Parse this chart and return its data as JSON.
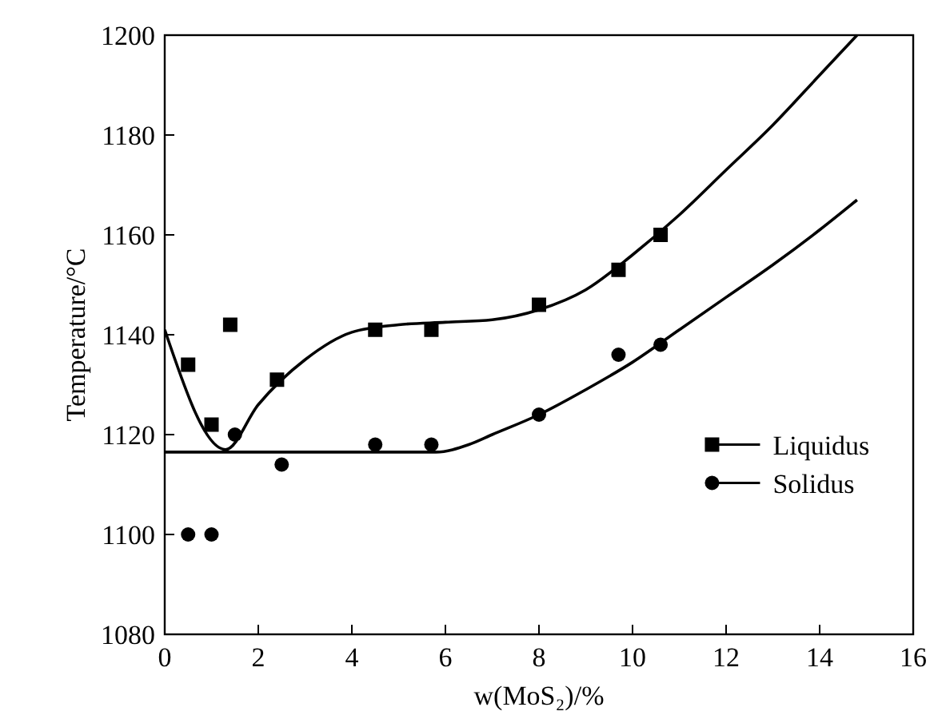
{
  "chart_data": {
    "type": "scatter",
    "xlabel": "w(MoS₂)/%",
    "ylabel": "Temperature/°C",
    "xlim": [
      0,
      16
    ],
    "xticks": [
      0,
      2,
      4,
      6,
      8,
      10,
      12,
      14,
      16
    ],
    "ylim": [
      1080,
      1200
    ],
    "yticks": [
      1080,
      1100,
      1120,
      1140,
      1160,
      1180,
      1200
    ],
    "grid": false,
    "legend": "right",
    "series": [
      {
        "name": "Liquidus",
        "marker": "square",
        "color": "#000000",
        "x": [
          0.5,
          1.0,
          1.4,
          2.4,
          4.5,
          5.7,
          8.0,
          9.7,
          10.6
        ],
        "values": [
          1134,
          1122,
          1142,
          1131,
          1141,
          1141,
          1146,
          1153,
          1160
        ]
      },
      {
        "name": "Solidus",
        "marker": "circle",
        "color": "#000000",
        "x": [
          0.5,
          1.0,
          1.5,
          2.5,
          4.5,
          5.7,
          8.0,
          9.7,
          10.6
        ],
        "values": [
          1100,
          1100,
          1120,
          1114,
          1118,
          1118,
          1124,
          1136,
          1138
        ]
      },
      {
        "type": "line",
        "marker": "none",
        "line_style": "solid",
        "color": "#000000",
        "x": [
          0,
          1.3,
          2,
          3,
          4,
          5,
          6,
          7,
          8,
          9,
          10,
          11,
          12,
          13,
          14,
          14.8
        ],
        "values": [
          1141,
          1117,
          1126,
          1135,
          1140.5,
          1142,
          1142.5,
          1143,
          1145,
          1149,
          1156,
          1164,
          1173,
          1182,
          1192,
          1200
        ]
      },
      {
        "type": "line",
        "marker": "none",
        "line_style": "solid",
        "color": "#000000",
        "x": [
          0,
          5.8,
          6.5,
          7,
          8,
          9,
          10,
          11,
          12,
          13,
          14,
          14.8
        ],
        "values": [
          1116.5,
          1116.5,
          1118,
          1120,
          1124,
          1129,
          1134.5,
          1141,
          1147.5,
          1154,
          1161,
          1167
        ]
      }
    ]
  }
}
